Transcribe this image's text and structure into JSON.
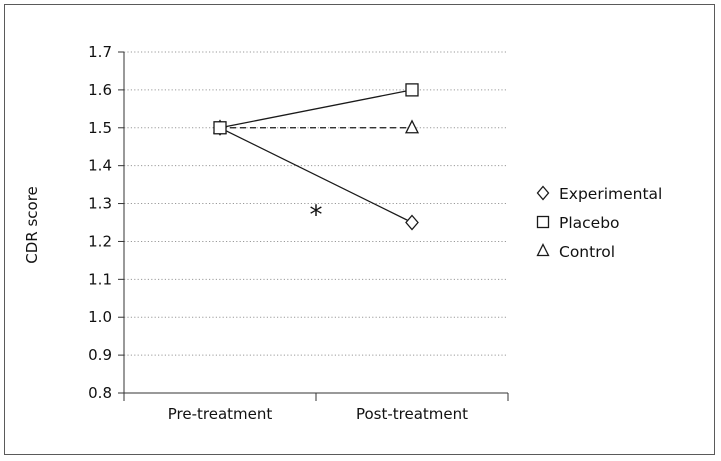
{
  "chart_data": {
    "type": "line",
    "title": "",
    "xlabel": "",
    "ylabel": "CDR score",
    "categories": [
      "Pre-treatment",
      "Post-treatment"
    ],
    "ylim": [
      0.8,
      1.7
    ],
    "yticks": [
      "0.8",
      "0.9",
      "1.0",
      "1.1",
      "1.2",
      "1.3",
      "1.4",
      "1.5",
      "1.6",
      "1.7"
    ],
    "grid": "horizontal dotted",
    "legend_position": "right",
    "series": [
      {
        "name": "Experimental",
        "values": [
          1.5,
          1.25
        ],
        "marker": "diamond",
        "line": "solid"
      },
      {
        "name": "Placebo",
        "values": [
          1.5,
          1.6
        ],
        "marker": "square",
        "line": "solid"
      },
      {
        "name": "Control",
        "values": [
          1.5,
          1.5
        ],
        "marker": "triangle",
        "line": "dashed"
      }
    ],
    "legend_symbols": [
      "◇",
      "□",
      "△"
    ],
    "annotations": [
      {
        "text": "*",
        "x_between": [
          "Pre-treatment",
          "Post-treatment"
        ],
        "y": 1.3
      }
    ],
    "colors": {
      "lines": "#1a1a1a",
      "grid": "#9a9a9a",
      "axis": "#333333",
      "marker_fill": "#ffffff"
    }
  }
}
